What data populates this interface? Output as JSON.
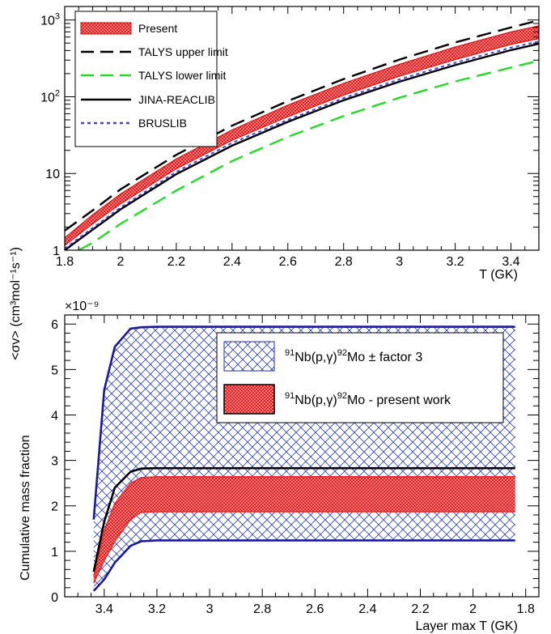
{
  "chart_data": [
    {
      "type": "line",
      "xlabel": "T (GK)",
      "ylabel": "<σv> (cm³mol⁻¹s⁻¹)",
      "yscale": "log",
      "xlim": [
        1.8,
        3.5
      ],
      "ylim": [
        1,
        1500
      ],
      "xticks": [
        1.8,
        2,
        2.2,
        2.4,
        2.6,
        2.8,
        3,
        3.2,
        3.4
      ],
      "xtick_labels": [
        "1.8",
        "2",
        "2.2",
        "2.4",
        "2.6",
        "2.8",
        "3",
        "3.2",
        "3.4"
      ],
      "yticks": [
        1,
        10,
        100,
        1000
      ],
      "ytick_labels": [
        "1",
        "10",
        "",
        ""
      ],
      "legend_placement": "top-left",
      "band": {
        "name": "Present",
        "color": "#ee2222",
        "x": [
          1.8,
          1.9,
          2.0,
          2.2,
          2.4,
          2.6,
          2.8,
          3.0,
          3.2,
          3.4,
          3.5
        ],
        "lower": [
          1.15,
          2.2,
          4.0,
          11.5,
          27,
          55,
          105,
          185,
          305,
          480,
          570
        ],
        "upper": [
          1.45,
          2.9,
          5.4,
          15.5,
          37,
          78,
          150,
          265,
          445,
          700,
          840
        ]
      },
      "series": [
        {
          "name": "TALYS upper limit",
          "color": "#000000",
          "style": "long-dash",
          "x": [
            1.8,
            1.9,
            2.0,
            2.2,
            2.4,
            2.6,
            2.8,
            3.0,
            3.2,
            3.4,
            3.5
          ],
          "y": [
            1.8,
            3.3,
            6.2,
            17.5,
            42,
            88,
            170,
            305,
            510,
            800,
            990
          ]
        },
        {
          "name": "TALYS lower limit",
          "color": "#22dd22",
          "style": "long-dash",
          "x": [
            1.85,
            1.9,
            2.0,
            2.2,
            2.4,
            2.6,
            2.8,
            3.0,
            3.2,
            3.4,
            3.5
          ],
          "y": [
            1.0,
            1.25,
            2.2,
            6.0,
            14.5,
            30,
            56,
            97,
            158,
            240,
            295
          ]
        },
        {
          "name": "JINA-REACLIB",
          "color": "#000000",
          "style": "solid",
          "x": [
            1.8,
            1.9,
            2.0,
            2.2,
            2.4,
            2.6,
            2.8,
            3.0,
            3.2,
            3.4,
            3.5
          ],
          "y": [
            1.0,
            1.85,
            3.4,
            9.8,
            23,
            47,
            90,
            157,
            258,
            405,
            490
          ]
        },
        {
          "name": "BRUSLIB",
          "color": "#4444dd",
          "style": "dotted",
          "x": [
            1.8,
            1.9,
            2.0,
            2.2,
            2.4,
            2.6,
            2.8,
            3.0,
            3.2,
            3.4,
            3.5
          ],
          "y": [
            1.05,
            1.95,
            3.6,
            10.5,
            25,
            50,
            96,
            168,
            277,
            435,
            525
          ]
        }
      ]
    },
    {
      "type": "area",
      "xlabel": "Layer max T (GK)",
      "ylabel": "Cumulative mass fraction",
      "x_reversed": true,
      "xlim": [
        3.55,
        1.75
      ],
      "ylim": [
        0,
        6.2
      ],
      "y_multiplier": "×10⁻⁹",
      "xticks": [
        3.4,
        3.2,
        3,
        2.8,
        2.6,
        2.4,
        2.2,
        2,
        1.8
      ],
      "xtick_labels": [
        "3.4",
        "3.2",
        "3",
        "2.8",
        "2.6",
        "2.4",
        "2.2",
        "2",
        "1.8"
      ],
      "yticks": [
        0,
        1,
        2,
        3,
        4,
        5,
        6
      ],
      "ytick_labels": [
        "0",
        "1",
        "2",
        "3",
        "4",
        "5",
        "6"
      ],
      "legend_placement": "top-right",
      "bands": [
        {
          "name_parts": [
            "91",
            "Nb(p,γ)",
            "92",
            "Mo ± factor 3"
          ],
          "color": "#2233aa",
          "fill": "cross-hatch",
          "x": [
            3.44,
            3.4,
            3.36,
            3.3,
            3.26,
            3.2,
            3.0,
            2.5,
            2.0,
            1.84
          ],
          "lower": [
            0.13,
            0.38,
            0.75,
            1.12,
            1.22,
            1.24,
            1.24,
            1.24,
            1.24,
            1.24
          ],
          "upper": [
            1.7,
            4.55,
            5.5,
            5.9,
            5.93,
            5.94,
            5.94,
            5.94,
            5.94,
            5.94
          ]
        },
        {
          "name_parts": [
            "91",
            "Nb(p,γ)",
            "92",
            "Mo - present work"
          ],
          "color": "#ee2222",
          "fill": "solid",
          "x": [
            3.44,
            3.4,
            3.36,
            3.3,
            3.26,
            3.2,
            3.0,
            2.5,
            2.0,
            1.84
          ],
          "lower": [
            0.3,
            0.8,
            1.22,
            1.7,
            1.86,
            1.87,
            1.87,
            1.87,
            1.87,
            1.87
          ],
          "upper": [
            0.45,
            1.45,
            2.05,
            2.5,
            2.62,
            2.64,
            2.64,
            2.64,
            2.64,
            2.64
          ]
        }
      ],
      "series": [
        {
          "name": "upper edge",
          "color": "#000000",
          "x": [
            3.44,
            3.4,
            3.36,
            3.3,
            3.26,
            3.2,
            3.0,
            2.5,
            2.0,
            1.84
          ],
          "y": [
            0.55,
            1.65,
            2.4,
            2.75,
            2.82,
            2.83,
            2.83,
            2.83,
            2.83,
            2.83
          ]
        }
      ]
    }
  ]
}
